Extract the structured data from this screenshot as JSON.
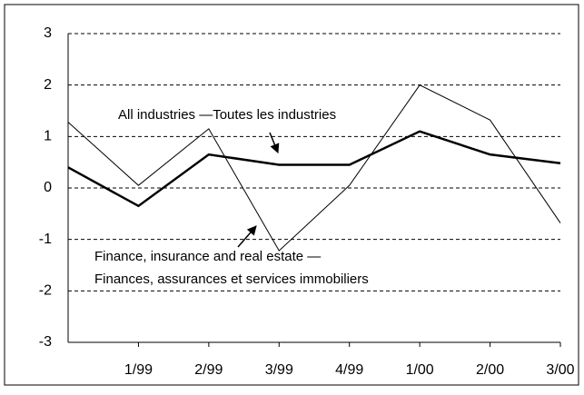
{
  "chart_data": {
    "type": "line",
    "categories": [
      null,
      "1/99",
      "2/99",
      "3/99",
      "4/99",
      "1/00",
      "2/00",
      "3/00"
    ],
    "series": [
      {
        "color": "#000000",
        "width": 2.5,
        "values": [
          0.4,
          -0.35,
          0.65,
          0.45,
          0.45,
          1.1,
          0.65,
          0.48
        ]
      },
      {
        "color": "#000000",
        "width": 1,
        "values": [
          1.28,
          0.05,
          1.15,
          -1.22,
          0.05,
          2.0,
          1.32,
          -0.68
        ]
      }
    ],
    "annotations": [
      "All industries —Toutes les industries",
      "Finance, insurance and real estate —",
      "Finances, assurances et services immobiliers"
    ],
    "ylim": [
      -3,
      3
    ],
    "yticks": [
      -3,
      -2,
      -1,
      0,
      1,
      2,
      3
    ],
    "grid": true
  }
}
